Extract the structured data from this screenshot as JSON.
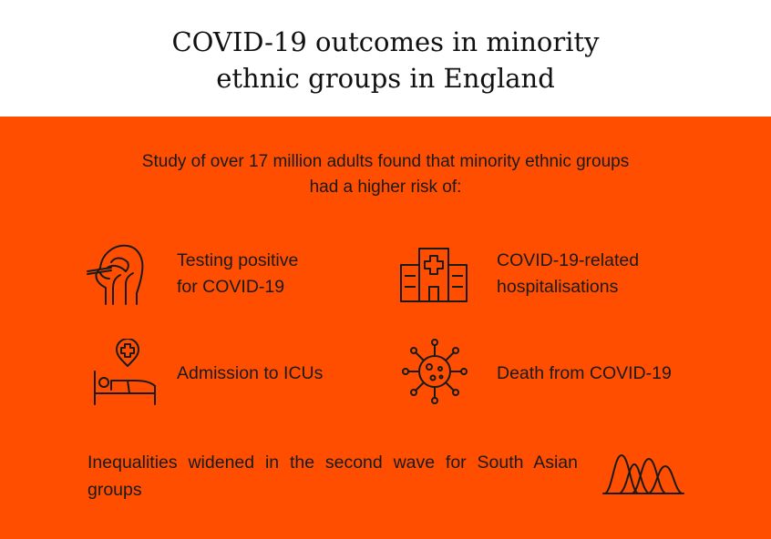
{
  "header": {
    "title_line1": "COVID-19 outcomes in minority",
    "title_line2": "ethnic groups in England"
  },
  "intro": {
    "line1": "Study of over 17 million adults found that minority ethnic groups",
    "line2": "had a higher risk of:"
  },
  "outcomes": [
    {
      "line1": "Testing positive",
      "line2": "for COVID-19",
      "icon": "nasal-swab-icon"
    },
    {
      "line1": "COVID-19-related",
      "line2": "hospitalisations",
      "icon": "hospital-icon"
    },
    {
      "line1": "Admission to ICUs",
      "icon": "hospital-bed-icon"
    },
    {
      "line1": "Death from COVID-19",
      "icon": "virus-icon"
    }
  ],
  "footer": {
    "text": "Inequalities widened in the second wave for South Asian groups",
    "icon": "waves-icon"
  },
  "colors": {
    "panel_background": "#ff4e00",
    "header_background": "#ffffff",
    "text": "#1a1a1a",
    "icon_stroke": "#1a1a1a"
  }
}
